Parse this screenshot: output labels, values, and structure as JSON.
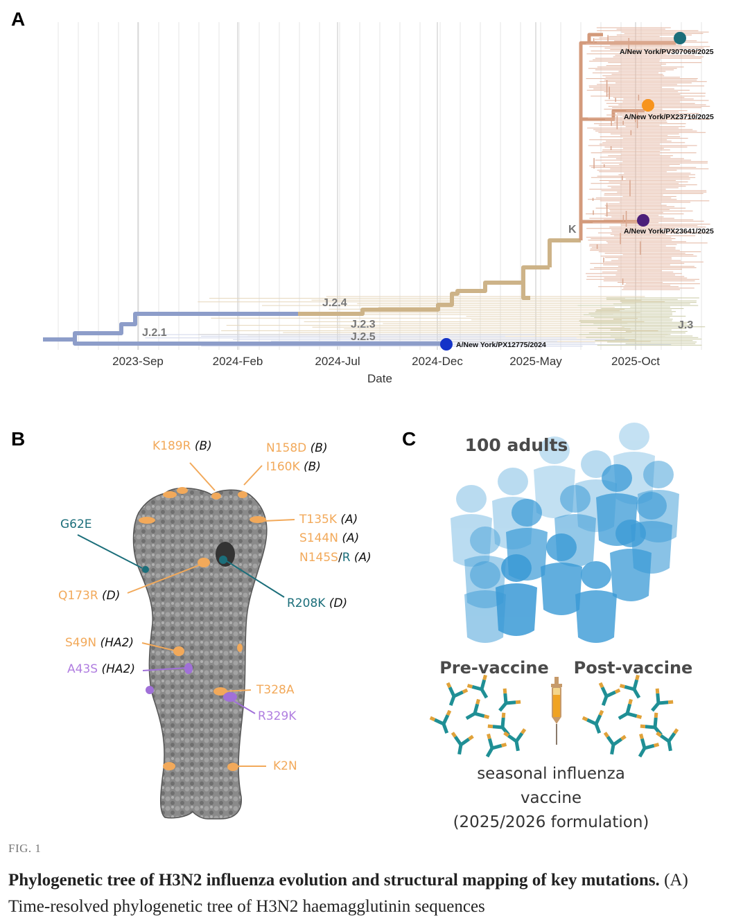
{
  "panels": {
    "a": "A",
    "b": "B",
    "c": "C"
  },
  "panel_a": {
    "x_ticks": [
      "2023-Sep",
      "2024-Feb",
      "2024-Jul",
      "2024-Dec",
      "2025-May",
      "2025-Oct"
    ],
    "x_label": "Date",
    "clades": [
      "J.2.1",
      "J.2.4",
      "J.2.3",
      "J.2.5",
      "K",
      "J.3"
    ],
    "strains": [
      {
        "name": "A/New York/PV307069/2025",
        "color": "#1b6e7a"
      },
      {
        "name": "A/New York/PX23710/2025",
        "color": "#f7941d"
      },
      {
        "name": "A/New York/PX23641/2025",
        "color": "#4b1f7a"
      },
      {
        "name": "A/New York/PX12775/2024",
        "color": "#1433c8"
      }
    ],
    "colors": {
      "j21": "#8d9dc9",
      "j24": "#cdb388",
      "k": "#d39a7b",
      "j3": "#b9bc93"
    }
  },
  "panel_b": {
    "mutations": {
      "k189r": "K189R",
      "k189r_site": "(B)",
      "n158d": "N158D",
      "n158d_site": "(B)",
      "i160k": "I160K",
      "i160k_site": "(B)",
      "g62e": "G62E",
      "t135k": "T135K",
      "t135k_site": "(A)",
      "s144n": "S144N",
      "s144n_site": "(A)",
      "n145s": "N145S",
      "slash": "/",
      "r": "R",
      "n145s_site": "(A)",
      "q173r": "Q173R",
      "q173r_site": "(D)",
      "r208k": "R208K",
      "r208k_site": "(D)",
      "s49n": "S49N",
      "s49n_site": "(HA2)",
      "a43s": "A43S",
      "a43s_site": "(HA2)",
      "t328a": "T328A",
      "r329k": "R329K",
      "k2n": "K2N"
    }
  },
  "panel_c": {
    "title": "100 adults",
    "pre": "Pre-vaccine",
    "post": "Post-vaccine",
    "vaccine_line1": "seasonal influenza",
    "vaccine_line2": "vaccine",
    "vaccine_line3": "(2025/2026 formulation)"
  },
  "figure": {
    "label": "FIG. 1",
    "caption_bold": "Phylogenetic tree of H3N2 influenza evolution and structural mapping of key mutations.",
    "caption_rest": " (A) Time-resolved phylogenetic tree of H3N2 haemagglutinin sequences"
  }
}
